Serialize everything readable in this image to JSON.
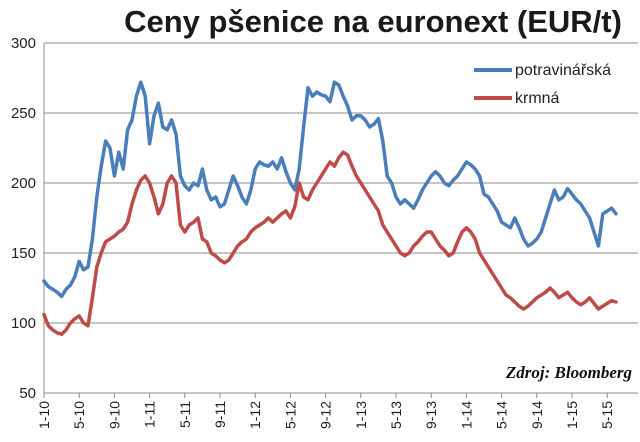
{
  "chart_data": {
    "type": "line",
    "title": "Ceny pšenice na euronext (EUR/t)",
    "source": "Zdroj: Bloomberg",
    "ylim": [
      50,
      300
    ],
    "yticks": [
      50,
      100,
      150,
      200,
      250,
      300
    ],
    "xlim": [
      0,
      67.5
    ],
    "xticks": [
      {
        "label": "1-10",
        "pos": 0
      },
      {
        "label": "5-10",
        "pos": 4
      },
      {
        "label": "9-10",
        "pos": 8
      },
      {
        "label": "1-11",
        "pos": 12
      },
      {
        "label": "5-11",
        "pos": 16
      },
      {
        "label": "9-11",
        "pos": 20
      },
      {
        "label": "1-12",
        "pos": 24
      },
      {
        "label": "5-12",
        "pos": 28
      },
      {
        "label": "9-12",
        "pos": 32
      },
      {
        "label": "1-13",
        "pos": 36
      },
      {
        "label": "5-13",
        "pos": 40
      },
      {
        "label": "9-13",
        "pos": 44
      },
      {
        "label": "1-14",
        "pos": 48
      },
      {
        "label": "5-14",
        "pos": 52
      },
      {
        "label": "9-14",
        "pos": 56
      },
      {
        "label": "1-15",
        "pos": 60
      },
      {
        "label": "5-15",
        "pos": 64
      }
    ],
    "grid": true,
    "legend": "top-right",
    "series": [
      {
        "name": "potravinářská",
        "color": "#4a7ebb",
        "points": [
          [
            0,
            130
          ],
          [
            0.5,
            126
          ],
          [
            1,
            124
          ],
          [
            1.5,
            122
          ],
          [
            2,
            119
          ],
          [
            2.5,
            124
          ],
          [
            3,
            127
          ],
          [
            3.5,
            133
          ],
          [
            4,
            144
          ],
          [
            4.5,
            138
          ],
          [
            5,
            140
          ],
          [
            5.5,
            160
          ],
          [
            6,
            190
          ],
          [
            6.5,
            212
          ],
          [
            7,
            230
          ],
          [
            7.5,
            225
          ],
          [
            8,
            205
          ],
          [
            8.5,
            222
          ],
          [
            9,
            210
          ],
          [
            9.5,
            238
          ],
          [
            10,
            245
          ],
          [
            10.5,
            262
          ],
          [
            11,
            272
          ],
          [
            11.5,
            262
          ],
          [
            12,
            228
          ],
          [
            12.5,
            248
          ],
          [
            13,
            257
          ],
          [
            13.5,
            240
          ],
          [
            14,
            238
          ],
          [
            14.5,
            245
          ],
          [
            15,
            235
          ],
          [
            15.5,
            205
          ],
          [
            16,
            198
          ],
          [
            16.5,
            195
          ],
          [
            17,
            200
          ],
          [
            17.5,
            198
          ],
          [
            18,
            210
          ],
          [
            18.5,
            195
          ],
          [
            19,
            188
          ],
          [
            19.5,
            190
          ],
          [
            20,
            183
          ],
          [
            20.5,
            185
          ],
          [
            21,
            195
          ],
          [
            21.5,
            205
          ],
          [
            22,
            198
          ],
          [
            22.5,
            190
          ],
          [
            23,
            185
          ],
          [
            23.5,
            195
          ],
          [
            24,
            210
          ],
          [
            24.5,
            215
          ],
          [
            25,
            213
          ],
          [
            25.5,
            212
          ],
          [
            26,
            215
          ],
          [
            26.5,
            210
          ],
          [
            27,
            218
          ],
          [
            27.5,
            208
          ],
          [
            28,
            200
          ],
          [
            28.5,
            195
          ],
          [
            29,
            210
          ],
          [
            29.5,
            240
          ],
          [
            30,
            268
          ],
          [
            30.5,
            262
          ],
          [
            31,
            265
          ],
          [
            31.5,
            263
          ],
          [
            32,
            262
          ],
          [
            32.5,
            258
          ],
          [
            33,
            272
          ],
          [
            33.5,
            270
          ],
          [
            34,
            262
          ],
          [
            34.5,
            255
          ],
          [
            35,
            245
          ],
          [
            35.5,
            248
          ],
          [
            36,
            248
          ],
          [
            36.5,
            245
          ],
          [
            37,
            240
          ],
          [
            37.5,
            242
          ],
          [
            38,
            246
          ],
          [
            38.5,
            230
          ],
          [
            39,
            205
          ],
          [
            39.5,
            200
          ],
          [
            40,
            190
          ],
          [
            40.5,
            185
          ],
          [
            41,
            188
          ],
          [
            41.5,
            185
          ],
          [
            42,
            182
          ],
          [
            42.5,
            188
          ],
          [
            43,
            195
          ],
          [
            43.5,
            200
          ],
          [
            44,
            205
          ],
          [
            44.5,
            208
          ],
          [
            45,
            205
          ],
          [
            45.5,
            200
          ],
          [
            46,
            198
          ],
          [
            46.5,
            202
          ],
          [
            47,
            205
          ],
          [
            47.5,
            210
          ],
          [
            48,
            215
          ],
          [
            48.5,
            213
          ],
          [
            49,
            210
          ],
          [
            49.5,
            205
          ],
          [
            50,
            192
          ],
          [
            50.5,
            190
          ],
          [
            51,
            185
          ],
          [
            51.5,
            180
          ],
          [
            52,
            172
          ],
          [
            52.5,
            170
          ],
          [
            53,
            168
          ],
          [
            53.5,
            175
          ],
          [
            54,
            168
          ],
          [
            54.5,
            160
          ],
          [
            55,
            155
          ],
          [
            55.5,
            157
          ],
          [
            56,
            160
          ],
          [
            56.5,
            165
          ],
          [
            57,
            175
          ],
          [
            57.5,
            185
          ],
          [
            58,
            195
          ],
          [
            58.5,
            188
          ],
          [
            59,
            190
          ],
          [
            59.5,
            196
          ],
          [
            60,
            192
          ],
          [
            60.5,
            188
          ],
          [
            61,
            185
          ],
          [
            61.5,
            180
          ],
          [
            62,
            175
          ],
          [
            62.5,
            165
          ],
          [
            63,
            155
          ],
          [
            63.5,
            178
          ],
          [
            64,
            180
          ],
          [
            64.5,
            182
          ],
          [
            65,
            178
          ]
        ]
      },
      {
        "name": "krmná",
        "color": "#be4b48",
        "points": [
          [
            0,
            106
          ],
          [
            0.5,
            98
          ],
          [
            1,
            95
          ],
          [
            1.5,
            93
          ],
          [
            2,
            92
          ],
          [
            2.5,
            95
          ],
          [
            3,
            100
          ],
          [
            3.5,
            103
          ],
          [
            4,
            105
          ],
          [
            4.5,
            100
          ],
          [
            5,
            98
          ],
          [
            5.5,
            118
          ],
          [
            6,
            140
          ],
          [
            6.5,
            150
          ],
          [
            7,
            158
          ],
          [
            7.5,
            160
          ],
          [
            8,
            162
          ],
          [
            8.5,
            165
          ],
          [
            9,
            167
          ],
          [
            9.5,
            172
          ],
          [
            10,
            185
          ],
          [
            10.5,
            195
          ],
          [
            11,
            202
          ],
          [
            11.5,
            205
          ],
          [
            12,
            200
          ],
          [
            12.5,
            190
          ],
          [
            13,
            178
          ],
          [
            13.5,
            185
          ],
          [
            14,
            200
          ],
          [
            14.5,
            205
          ],
          [
            15,
            200
          ],
          [
            15.5,
            170
          ],
          [
            16,
            165
          ],
          [
            16.5,
            170
          ],
          [
            17,
            172
          ],
          [
            17.5,
            175
          ],
          [
            18,
            160
          ],
          [
            18.5,
            158
          ],
          [
            19,
            150
          ],
          [
            19.5,
            148
          ],
          [
            20,
            145
          ],
          [
            20.5,
            143
          ],
          [
            21,
            145
          ],
          [
            21.5,
            150
          ],
          [
            22,
            155
          ],
          [
            22.5,
            158
          ],
          [
            23,
            160
          ],
          [
            23.5,
            165
          ],
          [
            24,
            168
          ],
          [
            24.5,
            170
          ],
          [
            25,
            172
          ],
          [
            25.5,
            175
          ],
          [
            26,
            172
          ],
          [
            26.5,
            175
          ],
          [
            27,
            178
          ],
          [
            27.5,
            180
          ],
          [
            28,
            175
          ],
          [
            28.5,
            183
          ],
          [
            29,
            200
          ],
          [
            29.5,
            190
          ],
          [
            30,
            188
          ],
          [
            30.5,
            195
          ],
          [
            31,
            200
          ],
          [
            31.5,
            205
          ],
          [
            32,
            210
          ],
          [
            32.5,
            215
          ],
          [
            33,
            212
          ],
          [
            33.5,
            218
          ],
          [
            34,
            222
          ],
          [
            34.5,
            220
          ],
          [
            35,
            212
          ],
          [
            35.5,
            205
          ],
          [
            36,
            200
          ],
          [
            36.5,
            195
          ],
          [
            37,
            190
          ],
          [
            37.5,
            185
          ],
          [
            38,
            180
          ],
          [
            38.5,
            170
          ],
          [
            39,
            165
          ],
          [
            39.5,
            160
          ],
          [
            40,
            155
          ],
          [
            40.5,
            150
          ],
          [
            41,
            148
          ],
          [
            41.5,
            150
          ],
          [
            42,
            155
          ],
          [
            42.5,
            158
          ],
          [
            43,
            162
          ],
          [
            43.5,
            165
          ],
          [
            44,
            165
          ],
          [
            44.5,
            160
          ],
          [
            45,
            155
          ],
          [
            45.5,
            152
          ],
          [
            46,
            148
          ],
          [
            46.5,
            150
          ],
          [
            47,
            158
          ],
          [
            47.5,
            165
          ],
          [
            48,
            168
          ],
          [
            48.5,
            165
          ],
          [
            49,
            160
          ],
          [
            49.5,
            150
          ],
          [
            50,
            145
          ],
          [
            50.5,
            140
          ],
          [
            51,
            135
          ],
          [
            51.5,
            130
          ],
          [
            52,
            125
          ],
          [
            52.5,
            120
          ],
          [
            53,
            118
          ],
          [
            53.5,
            115
          ],
          [
            54,
            112
          ],
          [
            54.5,
            110
          ],
          [
            55,
            112
          ],
          [
            55.5,
            115
          ],
          [
            56,
            118
          ],
          [
            56.5,
            120
          ],
          [
            57,
            122
          ],
          [
            57.5,
            125
          ],
          [
            58,
            122
          ],
          [
            58.5,
            118
          ],
          [
            59,
            120
          ],
          [
            59.5,
            122
          ],
          [
            60,
            118
          ],
          [
            60.5,
            115
          ],
          [
            61,
            113
          ],
          [
            61.5,
            115
          ],
          [
            62,
            118
          ],
          [
            62.5,
            114
          ],
          [
            63,
            110
          ],
          [
            63.5,
            112
          ],
          [
            64,
            114
          ],
          [
            64.5,
            116
          ],
          [
            65,
            115
          ]
        ]
      }
    ]
  }
}
